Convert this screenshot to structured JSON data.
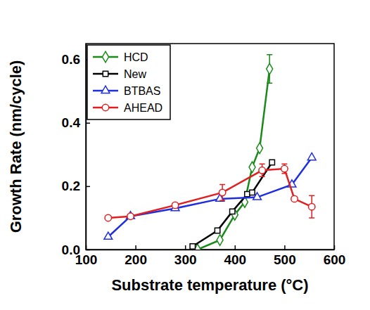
{
  "chart_data": {
    "type": "line",
    "x_label": "Substrate temperature (°C)",
    "y_label": "Growth Rate (nm/cycle)",
    "xlim": [
      100,
      600
    ],
    "xticks": [
      100,
      200,
      300,
      400,
      500,
      600
    ],
    "ylim": [
      0,
      0.65
    ],
    "yticks": [
      {
        "value": 0,
        "label": "0.0"
      },
      0.2,
      0.4,
      0.6
    ],
    "legend": "upper left",
    "grid": false,
    "series": [
      {
        "name": "HCD",
        "color": "#1a8a1a",
        "marker": "diamond",
        "x": [
          325,
          370,
          400,
          420,
          435,
          450,
          470
        ],
        "values": [
          0.0,
          0.03,
          0.11,
          0.15,
          0.26,
          0.32,
          0.57
        ],
        "errors": [
          null,
          null,
          null,
          null,
          null,
          null,
          0.045
        ]
      },
      {
        "name": "New",
        "color": "#000000",
        "marker": "square",
        "x": [
          315,
          365,
          395,
          425,
          435,
          475
        ],
        "values": [
          0.01,
          0.06,
          0.12,
          0.175,
          0.18,
          0.275
        ]
      },
      {
        "name": "BTBAS",
        "color": "#1f2fe0",
        "marker": "triangle",
        "x": [
          145,
          190,
          280,
          370,
          445,
          515,
          555
        ],
        "values": [
          0.04,
          0.105,
          0.13,
          0.16,
          0.165,
          0.205,
          0.29
        ]
      },
      {
        "name": "AHEAD",
        "color": "#e02020",
        "marker": "circle",
        "x": [
          145,
          190,
          280,
          375,
          455,
          500,
          520,
          555
        ],
        "values": [
          0.1,
          0.105,
          0.14,
          0.18,
          0.25,
          0.255,
          0.16,
          0.135
        ],
        "errors": [
          null,
          null,
          null,
          0.025,
          0.02,
          0.015,
          null,
          0.035
        ]
      }
    ]
  }
}
